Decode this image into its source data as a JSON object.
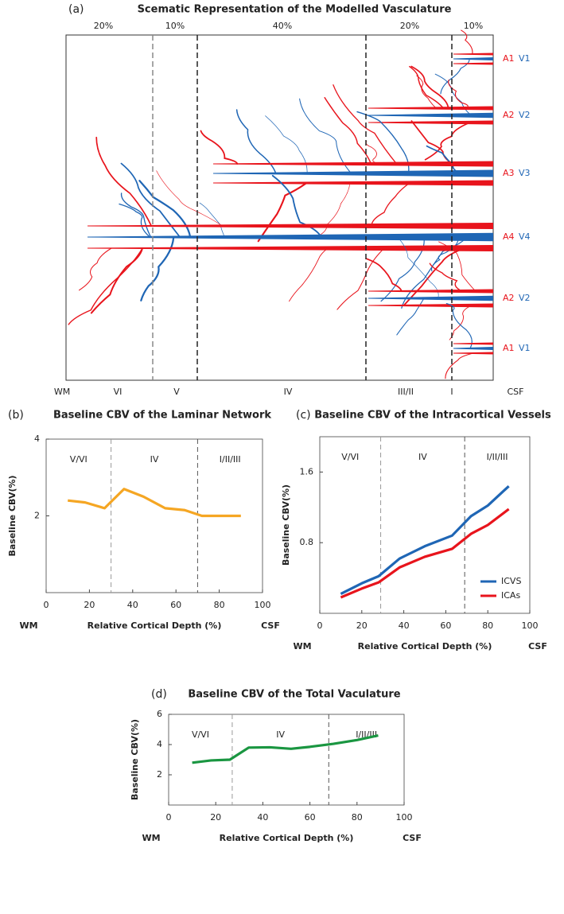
{
  "diagram": {
    "panel": "(a)",
    "title": "Scematic Representation of the Modelled Vasculature",
    "percentages": [
      "20%",
      "10%",
      "40%",
      "20%",
      "10%"
    ],
    "layers": [
      "WM",
      "VI",
      "V",
      "IV",
      "III/II",
      "I",
      "CSF"
    ],
    "vessels": [
      {
        "artery": "A1",
        "vein": "V1"
      },
      {
        "artery": "A2",
        "vein": "V2"
      },
      {
        "artery": "A3",
        "vein": "V3"
      },
      {
        "artery": "A4",
        "vein": "V4"
      },
      {
        "artery": "A2",
        "vein": "V2"
      },
      {
        "artery": "A1",
        "vein": "V1"
      }
    ]
  },
  "chart_data": [
    {
      "type": "line",
      "panel": "(b)",
      "title": "Baseline CBV of the Laminar Network",
      "y_label": "Baseline CBV(%)",
      "x_label": "Relative Cortical Depth (%)",
      "x_left_label": "WM",
      "x_right_label": "CSF",
      "x": [
        10,
        18,
        27,
        36,
        45,
        55,
        64,
        72,
        80,
        90
      ],
      "values": [
        2.4,
        2.35,
        2.2,
        2.7,
        2.5,
        2.2,
        2.15,
        2.0,
        2.0,
        2.0
      ],
      "color": "#f5a623",
      "xlim": [
        0,
        100
      ],
      "xticks": [
        0,
        20,
        40,
        60,
        80,
        100
      ],
      "ylim": [
        0,
        4
      ],
      "yticks": [
        2,
        4
      ],
      "regions": [
        "V/VI",
        "IV",
        "I/II/III"
      ],
      "dividers": [
        30,
        70
      ]
    },
    {
      "type": "line",
      "panel": "(c)",
      "title": "Baseline CBV of the Intracortical Vessels",
      "y_label": "Baseline CBV(%)",
      "x_label": "Relative Cortical Depth (%)",
      "x_left_label": "WM",
      "x_right_label": "CSF",
      "x": [
        10,
        20,
        28,
        38,
        50,
        63,
        72,
        80,
        90
      ],
      "series": [
        {
          "name": "ICVS",
          "color": "#1f66b5",
          "values": [
            0.22,
            0.34,
            0.42,
            0.62,
            0.76,
            0.88,
            1.1,
            1.22,
            1.44
          ]
        },
        {
          "name": "ICAs",
          "color": "#e8141c",
          "values": [
            0.18,
            0.28,
            0.35,
            0.52,
            0.64,
            0.73,
            0.9,
            1.0,
            1.18
          ]
        }
      ],
      "xlim": [
        0,
        100
      ],
      "xticks": [
        0,
        20,
        40,
        60,
        80,
        100
      ],
      "ylim": [
        0,
        2
      ],
      "yticks": [
        0.8,
        1.6
      ],
      "regions": [
        "V/VI",
        "IV",
        "I/II/III"
      ],
      "dividers": [
        29,
        69
      ],
      "legend": "lower right"
    },
    {
      "type": "line",
      "panel": "(d)",
      "title": "Baseline CBV of the Total Vaculature",
      "y_label": "Baseline CBV(%)",
      "x_label": "Relative Cortical Depth (%)",
      "x_left_label": "WM",
      "x_right_label": "CSF",
      "x": [
        10,
        18,
        26,
        34,
        43,
        52,
        60,
        70,
        80,
        89
      ],
      "values": [
        2.8,
        2.95,
        3.0,
        3.8,
        3.82,
        3.72,
        3.85,
        4.05,
        4.3,
        4.6
      ],
      "color": "#1a9641",
      "xlim": [
        0,
        100
      ],
      "xticks": [
        0,
        20,
        40,
        60,
        80,
        100
      ],
      "ylim": [
        0,
        6
      ],
      "yticks": [
        2,
        4,
        6
      ],
      "regions": [
        "V/VI",
        "IV",
        "I/II/III"
      ],
      "dividers": [
        27,
        68
      ]
    }
  ]
}
